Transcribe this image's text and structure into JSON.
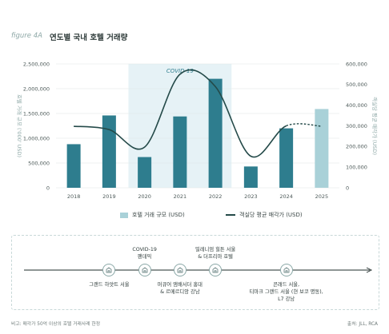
{
  "figure": {
    "label": "figure 4A",
    "title": "연도별 국내 호텔 거래량"
  },
  "chart_data": {
    "type": "bar",
    "categories": [
      "2018",
      "2019",
      "2020",
      "2021",
      "2022",
      "2023",
      "2024",
      "2025"
    ],
    "series": [
      {
        "name": "호텔 거래 규모 (USD)",
        "type": "bar",
        "axis": "left",
        "values": [
          880000,
          1460000,
          620000,
          1440000,
          2200000,
          430000,
          1200000,
          1590000
        ],
        "projected_index": 7
      },
      {
        "name": "객실당 평균 매각가 (USD)",
        "type": "line",
        "axis": "right",
        "values": [
          298000,
          282000,
          197000,
          550000,
          490000,
          153000,
          300000,
          298000
        ],
        "dashed_from_index": 6
      }
    ],
    "ylabel": "호텔 거래 규모 ('000' USD)",
    "ylabel_right": "객실당 평균 매각가 (USD)",
    "ylim": [
      0,
      2500000
    ],
    "ylim_right": [
      0,
      600000
    ],
    "yticks": [
      "0",
      "500,000",
      "1,000,000",
      "1,500,000",
      "2,000,000",
      "2,500,000"
    ],
    "yticks_right": [
      "0",
      "100,000",
      "200,000",
      "300,000",
      "400,000",
      "500,000",
      "600,000"
    ],
    "highlight": {
      "label": "COVID-19",
      "from": "2020",
      "to": "2022"
    },
    "legend_position": "bottom",
    "colors": {
      "bar": "#2e7d8e",
      "bar_projected": "#a9d1d8",
      "line": "#244a49",
      "highlight": "#e6f2f6"
    }
  },
  "timeline": {
    "events": [
      {
        "year": "2019",
        "text": "그랜드 하얏트 서울",
        "position": "below"
      },
      {
        "year": "2020",
        "text": "COVID-19\n팬데믹",
        "position": "above"
      },
      {
        "year": "2021",
        "text": "머큐어 앰배서더 홍대\n& 르메르디앙 강남",
        "position": "below"
      },
      {
        "year": "2022",
        "text": "밀레니엄 힐튼 서울\n& 더프리마 호텔",
        "position": "above"
      },
      {
        "year": "2024",
        "text": "콘래드 서울,\n티마크 그랜드 서울 (현 보코 명동),\nL7 강남",
        "position": "below"
      }
    ]
  },
  "footer": {
    "note": "비고: 매각가 50억 이상의 호텔 거래사례 한정",
    "source": "출처: JLL, RCA"
  }
}
